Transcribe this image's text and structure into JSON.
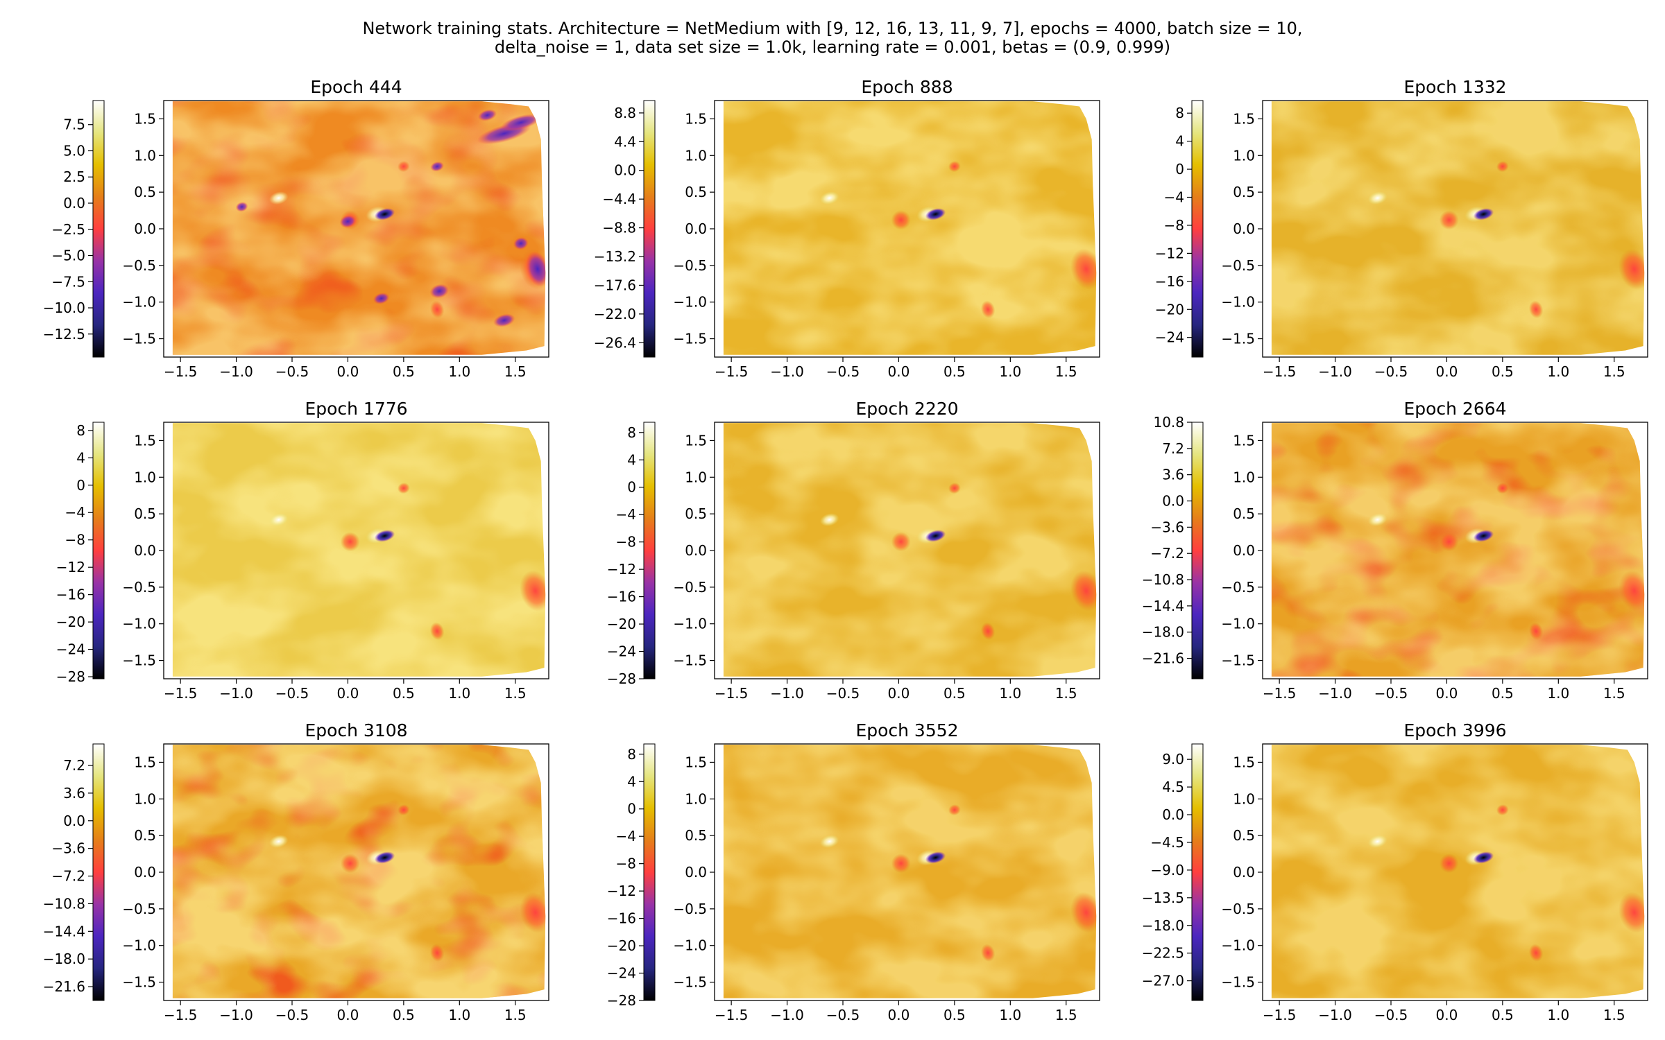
{
  "figure": {
    "title_line1": "Network training stats. Architecture = NetMedium with [9, 12, 16, 13, 11, 9, 7], epochs = 4000, batch size = 10,",
    "title_line2": "delta_noise = 1, data set size = 1.0k, learning rate = 0.001, betas = (0.9, 0.999)"
  },
  "colors": {
    "colormap": "CMRmap",
    "stops": [
      "#000000",
      "#26267f",
      "#4c26bf",
      "#9933a6",
      "#ff3f3f",
      "#e57f19",
      "#e5bf00",
      "#e5e580",
      "#ffffff"
    ]
  },
  "chart_data": [
    {
      "type": "heatmap",
      "title": "Epoch 444",
      "xlim": [
        -1.65,
        1.8
      ],
      "ylim": [
        -1.75,
        1.75
      ],
      "xticks": [
        "−1.5",
        "−1.0",
        "−0.5",
        "0.0",
        "0.5",
        "1.0",
        "1.5"
      ],
      "yticks": [
        "−1.5",
        "−1.0",
        "−0.5",
        "0.0",
        "0.5",
        "1.0",
        "1.5"
      ],
      "colorbar": {
        "ticks": [
          "7.5",
          "5.0",
          "2.5",
          "0.0",
          "−2.5",
          "−5.0",
          "−7.5",
          "−10.0",
          "−12.5"
        ],
        "range": [
          -14.7,
          9.8
        ]
      }
    },
    {
      "type": "heatmap",
      "title": "Epoch 888",
      "xlim": [
        -1.65,
        1.8
      ],
      "ylim": [
        -1.75,
        1.75
      ],
      "xticks": [
        "−1.5",
        "−1.0",
        "−0.5",
        "0.0",
        "0.5",
        "1.0",
        "1.5"
      ],
      "yticks": [
        "−1.5",
        "−1.0",
        "−0.5",
        "0.0",
        "0.5",
        "1.0",
        "1.5"
      ],
      "colorbar": {
        "ticks": [
          "8.8",
          "4.4",
          "0.0",
          "−4.4",
          "−8.8",
          "−13.2",
          "−17.6",
          "−22.0",
          "−26.4"
        ],
        "range": [
          -28.6,
          10.7
        ]
      }
    },
    {
      "type": "heatmap",
      "title": "Epoch 1332",
      "xlim": [
        -1.65,
        1.8
      ],
      "ylim": [
        -1.75,
        1.75
      ],
      "xticks": [
        "−1.5",
        "−1.0",
        "−0.5",
        "0.0",
        "0.5",
        "1.0",
        "1.5"
      ],
      "yticks": [
        "−1.5",
        "−1.0",
        "−0.5",
        "0.0",
        "0.5",
        "1.0",
        "1.5"
      ],
      "colorbar": {
        "ticks": [
          "8",
          "4",
          "0",
          "−4",
          "−8",
          "−12",
          "−16",
          "−20",
          "−24"
        ],
        "range": [
          -26.8,
          9.8
        ]
      }
    },
    {
      "type": "heatmap",
      "title": "Epoch 1776",
      "xlim": [
        -1.65,
        1.8
      ],
      "ylim": [
        -1.75,
        1.75
      ],
      "xticks": [
        "−1.5",
        "−1.0",
        "−0.5",
        "0.0",
        "0.5",
        "1.0",
        "1.5"
      ],
      "yticks": [
        "−1.5",
        "−1.0",
        "−0.5",
        "0.0",
        "0.5",
        "1.0",
        "1.5"
      ],
      "colorbar": {
        "ticks": [
          "8",
          "4",
          "0",
          "−4",
          "−8",
          "−12",
          "−16",
          "−20",
          "−24",
          "−28"
        ],
        "range": [
          -28.3,
          9.2
        ]
      }
    },
    {
      "type": "heatmap",
      "title": "Epoch 2220",
      "xlim": [
        -1.65,
        1.8
      ],
      "ylim": [
        -1.75,
        1.75
      ],
      "xticks": [
        "−1.5",
        "−1.0",
        "−0.5",
        "0.0",
        "0.5",
        "1.0",
        "1.5"
      ],
      "yticks": [
        "−1.5",
        "−1.0",
        "−0.5",
        "0.0",
        "0.5",
        "1.0",
        "1.5"
      ],
      "colorbar": {
        "ticks": [
          "8",
          "4",
          "0",
          "−4",
          "−8",
          "−12",
          "−16",
          "−20",
          "−24",
          "−28"
        ],
        "range": [
          -28.0,
          9.5
        ]
      }
    },
    {
      "type": "heatmap",
      "title": "Epoch 2664",
      "xlim": [
        -1.65,
        1.8
      ],
      "ylim": [
        -1.75,
        1.75
      ],
      "xticks": [
        "−1.5",
        "−1.0",
        "−0.5",
        "0.0",
        "0.5",
        "1.0",
        "1.5"
      ],
      "yticks": [
        "−1.5",
        "−1.0",
        "−0.5",
        "0.0",
        "0.5",
        "1.0",
        "1.5"
      ],
      "colorbar": {
        "ticks": [
          "10.8",
          "7.2",
          "3.6",
          "0.0",
          "−3.6",
          "−7.2",
          "−10.8",
          "−14.4",
          "−18.0",
          "−21.6"
        ],
        "range": [
          -24.4,
          10.8
        ]
      }
    },
    {
      "type": "heatmap",
      "title": "Epoch 3108",
      "xlim": [
        -1.65,
        1.8
      ],
      "ylim": [
        -1.75,
        1.75
      ],
      "xticks": [
        "−1.5",
        "−1.0",
        "−0.5",
        "0.0",
        "0.5",
        "1.0",
        "1.5"
      ],
      "yticks": [
        "−1.5",
        "−1.0",
        "−0.5",
        "0.0",
        "0.5",
        "1.0",
        "1.5"
      ],
      "colorbar": {
        "ticks": [
          "7.2",
          "3.6",
          "0.0",
          "−3.6",
          "−7.2",
          "−10.8",
          "−14.4",
          "−18.0",
          "−21.6"
        ],
        "range": [
          -23.4,
          10.0
        ]
      }
    },
    {
      "type": "heatmap",
      "title": "Epoch 3552",
      "xlim": [
        -1.65,
        1.8
      ],
      "ylim": [
        -1.75,
        1.75
      ],
      "xticks": [
        "−1.5",
        "−1.0",
        "−0.5",
        "0.0",
        "0.5",
        "1.0",
        "1.5"
      ],
      "yticks": [
        "−1.5",
        "−1.0",
        "−0.5",
        "0.0",
        "0.5",
        "1.0",
        "1.5"
      ],
      "colorbar": {
        "ticks": [
          "8",
          "4",
          "0",
          "−4",
          "−8",
          "−12",
          "−16",
          "−20",
          "−24",
          "−28"
        ],
        "range": [
          -28.0,
          9.5
        ]
      }
    },
    {
      "type": "heatmap",
      "title": "Epoch 3996",
      "xlim": [
        -1.65,
        1.8
      ],
      "ylim": [
        -1.75,
        1.75
      ],
      "xticks": [
        "−1.5",
        "−1.0",
        "−0.5",
        "0.0",
        "0.5",
        "1.0",
        "1.5"
      ],
      "yticks": [
        "−1.5",
        "−1.0",
        "−0.5",
        "0.0",
        "0.5",
        "1.0",
        "1.5"
      ],
      "colorbar": {
        "ticks": [
          "9.0",
          "4.5",
          "0.0",
          "−4.5",
          "−9.0",
          "−13.5",
          "−18.0",
          "−22.5",
          "−27.0"
        ],
        "range": [
          -30.2,
          11.5
        ]
      }
    }
  ]
}
